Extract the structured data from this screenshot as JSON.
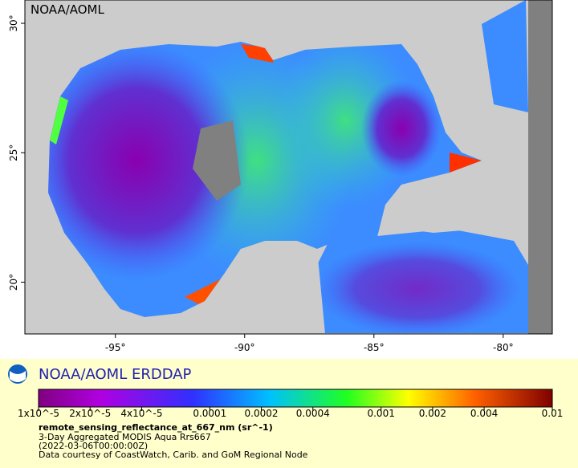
{
  "map": {
    "watermark": "NOAA/AOML",
    "xlim": [
      -98.5,
      -78.1
    ],
    "ylim": [
      18.0,
      30.9
    ],
    "xticks": [
      {
        "value": -95,
        "label": "-95°"
      },
      {
        "value": -90,
        "label": "-90°"
      },
      {
        "value": -85,
        "label": "-85°"
      },
      {
        "value": -80,
        "label": "-80°"
      }
    ],
    "yticks": [
      {
        "value": 20,
        "label": "20°"
      },
      {
        "value": 25,
        "label": "25°"
      },
      {
        "value": 30,
        "label": "30°"
      }
    ]
  },
  "legend": {
    "brand": "NOAA/AOML ERDDAP",
    "log_scale": true,
    "lim": [
      1e-05,
      0.01
    ],
    "ticks": [
      {
        "value": 1e-05,
        "label": "1x10^-5"
      },
      {
        "value": 2e-05,
        "label": "2x10^-5"
      },
      {
        "value": 4e-05,
        "label": "4x10^-5"
      },
      0.0001,
      0.0002,
      0.0004,
      0.001,
      0.002,
      0.004,
      0.01
    ],
    "variable": "remote_sensing_reflectance_at_667_nm (sr^-1)",
    "dataset": "3-Day Aggregated MODIS Aqua Rrs667",
    "time": "(2022-03-06T00:00:00Z)",
    "credit": "Data courtesy of CoastWatch, Carib. and GoM Regional Node"
  }
}
